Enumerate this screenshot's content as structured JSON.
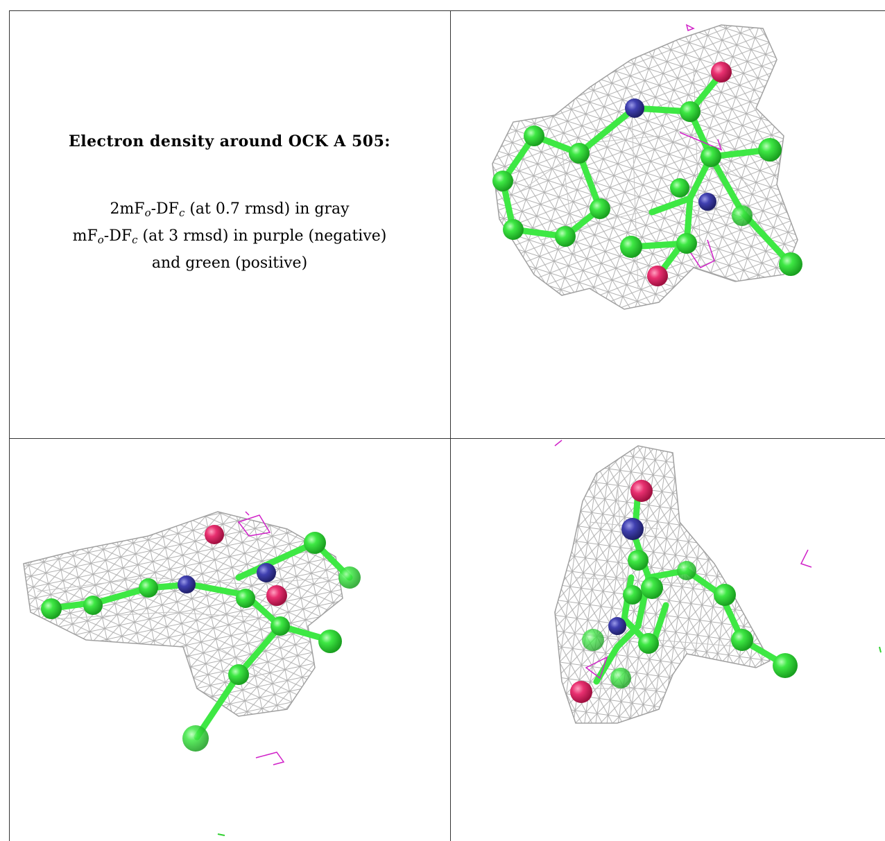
{
  "caption": {
    "title": "Electron density around OCK A 505:",
    "line1_prefix": "2mF",
    "line1_sub_o": "o",
    "line1_mid": "-DF",
    "line1_sub_c": "c",
    "line1_suffix": " (at 0.7 rmsd) in gray",
    "line2_prefix": "mF",
    "line2_sub_o": "o",
    "line2_mid": "-DF",
    "line2_sub_c": "c",
    "line2_suffix": " (at 3 rmsd) in purple (negative)",
    "line3": "and green (positive)"
  },
  "colors": {
    "carbon": "#3ee844",
    "nitrogen": "#3c3ca8",
    "oxygen": "#e83070",
    "mesh": "#a8a8a8",
    "negative": "#d020c8",
    "positive": "#30d030"
  },
  "panels": [
    "view-top-right",
    "view-bottom-left",
    "view-bottom-right"
  ]
}
